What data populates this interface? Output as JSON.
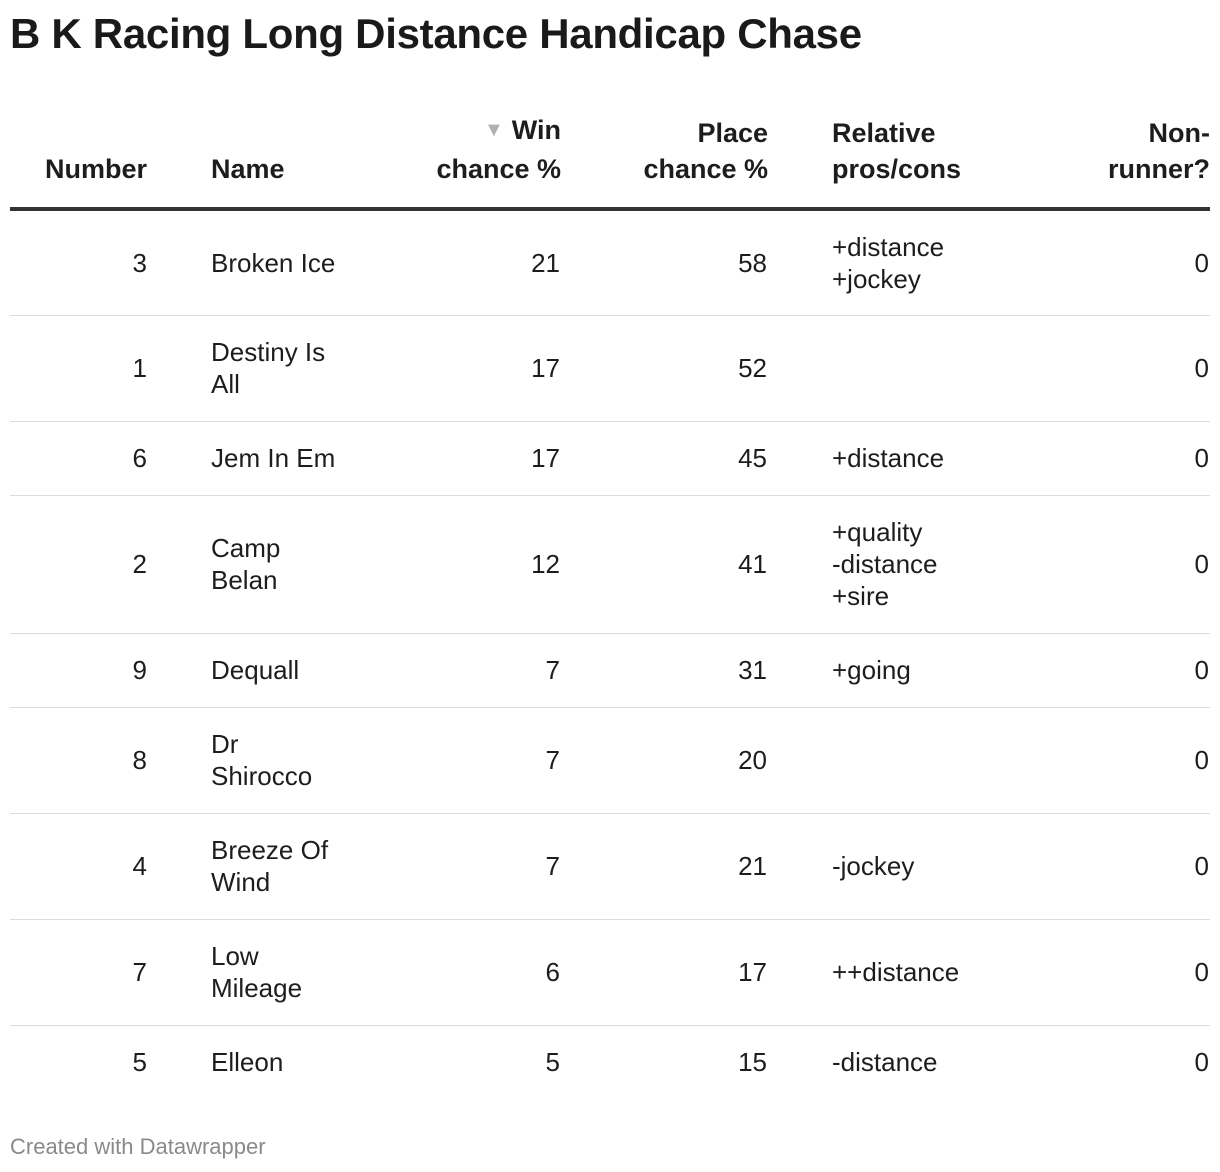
{
  "chart_data": {
    "type": "table",
    "title": "B K Racing Long Distance Handicap Chase",
    "columns": [
      {
        "key": "number",
        "label_lines": [
          "Number"
        ]
      },
      {
        "key": "name",
        "label_lines": [
          "Name"
        ]
      },
      {
        "key": "win",
        "label_lines": [
          "Win",
          "chance %"
        ],
        "sorted": "descending"
      },
      {
        "key": "place",
        "label_lines": [
          "Place",
          "chance %"
        ]
      },
      {
        "key": "pros",
        "label_lines": [
          "Relative",
          "pros/cons"
        ]
      },
      {
        "key": "nr",
        "label_lines": [
          "Non-",
          "runner?"
        ]
      }
    ],
    "rows": [
      {
        "number": "3",
        "name": [
          "Broken Ice"
        ],
        "win": "21",
        "place": "58",
        "pros": [
          "+distance",
          "+jockey"
        ],
        "nr": "0"
      },
      {
        "number": "1",
        "name": [
          "Destiny Is",
          "All"
        ],
        "win": "17",
        "place": "52",
        "pros": [],
        "nr": "0"
      },
      {
        "number": "6",
        "name": [
          "Jem In Em"
        ],
        "win": "17",
        "place": "45",
        "pros": [
          "+distance"
        ],
        "nr": "0"
      },
      {
        "number": "2",
        "name": [
          "Camp",
          "Belan"
        ],
        "win": "12",
        "place": "41",
        "pros": [
          "+quality",
          "-distance",
          "+sire"
        ],
        "nr": "0"
      },
      {
        "number": "9",
        "name": [
          "Dequall"
        ],
        "win": "7",
        "place": "31",
        "pros": [
          "+going"
        ],
        "nr": "0"
      },
      {
        "number": "8",
        "name": [
          "Dr",
          "Shirocco"
        ],
        "win": "7",
        "place": "20",
        "pros": [],
        "nr": "0"
      },
      {
        "number": "4",
        "name": [
          "Breeze Of",
          "Wind"
        ],
        "win": "7",
        "place": "21",
        "pros": [
          "-jockey"
        ],
        "nr": "0"
      },
      {
        "number": "7",
        "name": [
          "Low",
          "Mileage"
        ],
        "win": "6",
        "place": "17",
        "pros": [
          "++distance"
        ],
        "nr": "0"
      },
      {
        "number": "5",
        "name": [
          "Elleon"
        ],
        "win": "5",
        "place": "15",
        "pros": [
          "-distance"
        ],
        "nr": "0"
      }
    ]
  },
  "footer": "Created with Datawrapper",
  "icons": {
    "sort": "sort-descending-icon"
  },
  "colors": {
    "header_rule": "#333333",
    "row_rule": "#dcdcdc",
    "footer_text": "#8a8a8a",
    "sort_arrow": "#b0b0b0"
  }
}
